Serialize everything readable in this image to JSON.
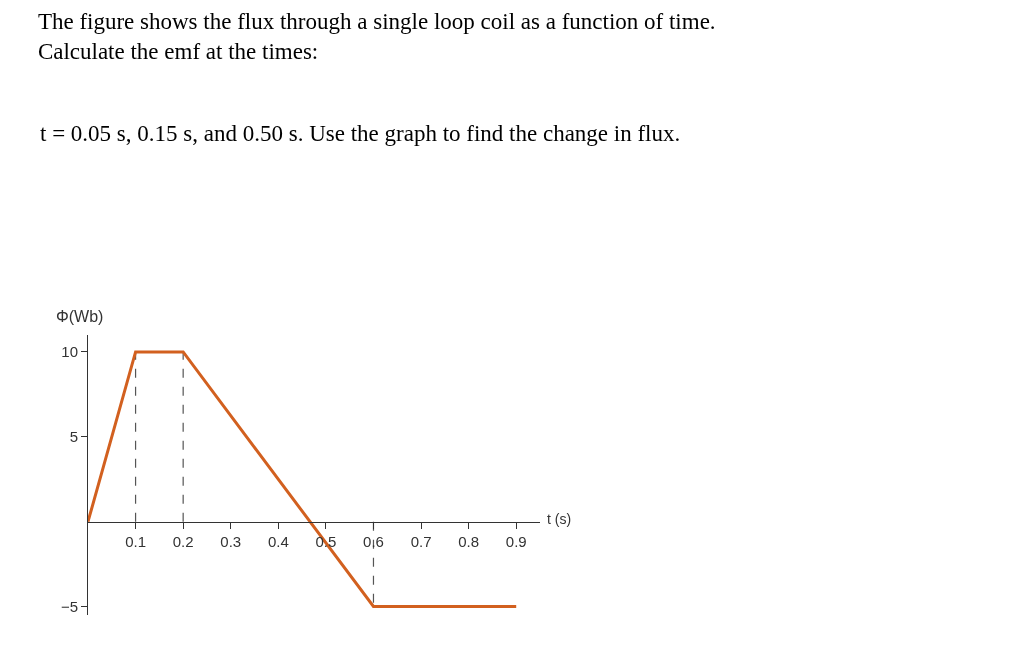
{
  "chart_data": {
    "type": "line",
    "title": "The figure shows the flux through a single loop coil as a function of time.\nCalculate the emf at the times:",
    "subtitle": "t = 0.05 s, 0.15 s, and 0.50 s. Use the graph to find the change in flux.",
    "xlabel": "t (s)",
    "ylabel": "Φ(Wb)",
    "x": [
      0,
      0.1,
      0.2,
      0.6,
      0.9
    ],
    "series": [
      {
        "color": "#d2601f",
        "values": [
          0,
          10,
          10,
          -5,
          -5
        ]
      }
    ],
    "xlim": [
      0,
      0.95
    ],
    "xticks": [
      0.1,
      0.2,
      0.3,
      0.4,
      0.5,
      0.6,
      0.7,
      0.8,
      0.9
    ],
    "ylim": [
      -5.5,
      11
    ],
    "yticks": [
      -5,
      5,
      10
    ],
    "ref_lines": [
      {
        "axis": "x",
        "value": 0.1,
        "line_style": "dashed",
        "color": "#555555"
      },
      {
        "axis": "x",
        "value": 0.2,
        "line_style": "dashed",
        "color": "#555555"
      },
      {
        "axis": "x",
        "value": 0.6,
        "line_style": "dashed",
        "color": "#555555"
      }
    ],
    "grid": false,
    "legend": false,
    "marker": "none",
    "line_style": "solid"
  }
}
